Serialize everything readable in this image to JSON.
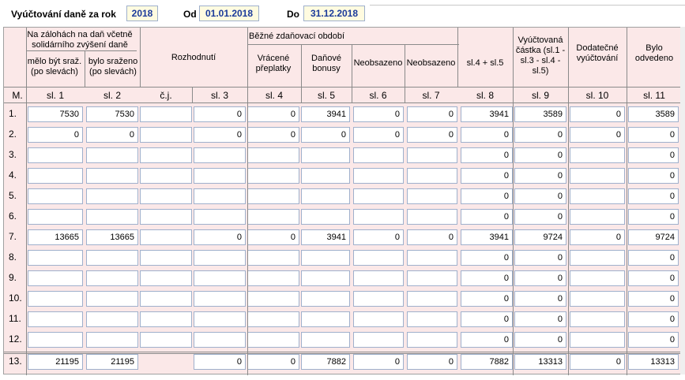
{
  "header": {
    "title": "Vyúčtování  daně za rok",
    "year": "2018",
    "from_label": "Od",
    "from_date": "01.01.2018",
    "to_label": "Do",
    "to_date": "31.12.2018"
  },
  "table": {
    "group_zalohy": "Na zálohách na daň včetně solidárního zvýšení daně",
    "group_bezne": "Běžné zdaňovací období",
    "sub_melo": "mělo být sraž. (po slevách)",
    "sub_bylo": "bylo sraženo (po slevách)",
    "h_rozhodnuti": "Rozhodnutí",
    "h_vracene": "Vrácené přeplatky",
    "h_danove": "Daňové bonusy",
    "h_neobs1": "Neobsazeno",
    "h_neobs2": "Neobsazeno",
    "h_sl45": "sl.4 + sl.5",
    "h_vyuct": "Vyúčtovaná částka (sl.1 - sl.3 - sl.4 - sl.5)",
    "h_dodat": "Dodatečné vyúčtování",
    "h_bylo": "Bylo odvedeno",
    "col_labels": [
      "M.",
      "sl. 1",
      "sl. 2",
      "č.j.",
      "sl. 3",
      "sl. 4",
      "sl. 5",
      "sl. 6",
      "sl. 7",
      "sl. 8",
      "sl. 9",
      "sl. 10",
      "sl. 11"
    ],
    "rows": [
      {
        "label": "1.",
        "cells": [
          "7530",
          "7530",
          "",
          "0",
          "0",
          "3941",
          "0",
          "0",
          "3941",
          "3589",
          "0",
          "3589"
        ]
      },
      {
        "label": "2.",
        "cells": [
          "0",
          "0",
          "",
          "0",
          "0",
          "0",
          "0",
          "0",
          "0",
          "0",
          "0",
          "0"
        ]
      },
      {
        "label": "3.",
        "cells": [
          "",
          "",
          "",
          "",
          "",
          "",
          "",
          "",
          "0",
          "0",
          "",
          "0"
        ]
      },
      {
        "label": "4.",
        "cells": [
          "",
          "",
          "",
          "",
          "",
          "",
          "",
          "",
          "0",
          "0",
          "",
          "0"
        ]
      },
      {
        "label": "5.",
        "cells": [
          "",
          "",
          "",
          "",
          "",
          "",
          "",
          "",
          "0",
          "0",
          "",
          "0"
        ]
      },
      {
        "label": "6.",
        "cells": [
          "",
          "",
          "",
          "",
          "",
          "",
          "",
          "",
          "0",
          "0",
          "",
          "0"
        ]
      },
      {
        "label": "7.",
        "cells": [
          "13665",
          "13665",
          "",
          "0",
          "0",
          "3941",
          "0",
          "0",
          "3941",
          "9724",
          "0",
          "9724"
        ]
      },
      {
        "label": "8.",
        "cells": [
          "",
          "",
          "",
          "",
          "",
          "",
          "",
          "",
          "0",
          "0",
          "",
          "0"
        ]
      },
      {
        "label": "9.",
        "cells": [
          "",
          "",
          "",
          "",
          "",
          "",
          "",
          "",
          "0",
          "0",
          "",
          "0"
        ]
      },
      {
        "label": "10.",
        "cells": [
          "",
          "",
          "",
          "",
          "",
          "",
          "",
          "",
          "0",
          "0",
          "",
          "0"
        ]
      },
      {
        "label": "11.",
        "cells": [
          "",
          "",
          "",
          "",
          "",
          "",
          "",
          "",
          "0",
          "0",
          "",
          "0"
        ]
      },
      {
        "label": "12.",
        "cells": [
          "",
          "",
          "",
          "",
          "",
          "",
          "",
          "",
          "0",
          "0",
          "",
          "0"
        ]
      }
    ],
    "total": {
      "label": "13.",
      "cells": [
        "21195",
        "21195",
        "",
        "0",
        "0",
        "7882",
        "0",
        "0",
        "7882",
        "13313",
        "0",
        "13313"
      ]
    }
  }
}
